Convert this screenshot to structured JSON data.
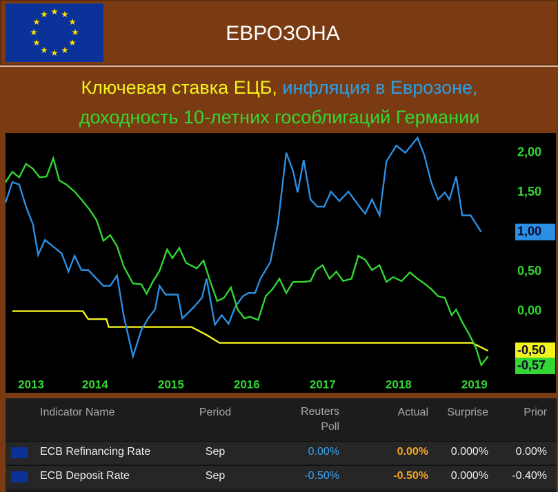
{
  "header": {
    "title": "ЕВРОЗОНА"
  },
  "chart_data": {
    "type": "line",
    "subtitle": [
      "Ключевая ставка ЕЦБ,",
      "инфляция в Еврозоне,",
      "доходность 10-летних гособлигаций Германии"
    ],
    "xlim": [
      2012.82,
      2019.52
    ],
    "ylim": [
      -1.03,
      2.25
    ],
    "xticks": [
      2013,
      2014,
      2015,
      2016,
      2017,
      2018,
      2019
    ],
    "yticks": [
      {
        "value": 0,
        "label": "0,00"
      },
      {
        "value": 0.5,
        "label": "0,50"
      },
      {
        "value": 1,
        "label": "1,00"
      },
      {
        "value": 1.5,
        "label": "1,50"
      },
      {
        "value": 2,
        "label": "2,00"
      }
    ],
    "grid": false,
    "series": [
      {
        "color": "#f2f21e",
        "last_label": "-0,50",
        "x": [
          2012.91,
          2013.84,
          2013.91,
          2014.15,
          2014.18,
          2015.27,
          2015.47,
          2015.64,
          2018.97,
          2019.18
        ],
        "values": [
          0,
          0,
          -0.1,
          -0.1,
          -0.2,
          -0.2,
          -0.3,
          -0.4,
          -0.4,
          -0.5
        ]
      },
      {
        "color": "#2b8fe3",
        "last_label": "1,00",
        "x": [
          2012.82,
          2012.91,
          2013.0,
          2013.09,
          2013.18,
          2013.25,
          2013.34,
          2013.47,
          2013.56,
          2013.65,
          2013.73,
          2013.82,
          2013.91,
          2014.02,
          2014.11,
          2014.2,
          2014.29,
          2014.38,
          2014.5,
          2014.61,
          2014.7,
          2014.79,
          2014.85,
          2014.93,
          2015.04,
          2015.09,
          2015.15,
          2015.29,
          2015.41,
          2015.47,
          2015.58,
          2015.67,
          2015.76,
          2015.85,
          2015.95,
          2016.02,
          2016.11,
          2016.18,
          2016.31,
          2016.41,
          2016.52,
          2016.61,
          2016.67,
          2016.75,
          2016.84,
          2016.93,
          2017.02,
          2017.11,
          2017.22,
          2017.34,
          2017.47,
          2017.56,
          2017.65,
          2017.75,
          2017.84,
          2017.97,
          2018.09,
          2018.25,
          2018.34,
          2018.43,
          2018.52,
          2018.61,
          2018.67,
          2018.76,
          2018.84,
          2018.95,
          2019.09
        ],
        "values": [
          1.37,
          1.63,
          1.6,
          1.32,
          1.1,
          0.71,
          0.9,
          0.8,
          0.73,
          0.5,
          0.7,
          0.52,
          0.52,
          0.41,
          0.32,
          0.32,
          0.45,
          -0.07,
          -0.57,
          -0.24,
          -0.09,
          0.02,
          0.32,
          0.21,
          0.21,
          0.21,
          -0.09,
          0.04,
          0.17,
          0.41,
          -0.17,
          -0.05,
          -0.16,
          0.06,
          0.19,
          0.23,
          0.23,
          0.41,
          0.62,
          1.1,
          2.0,
          1.77,
          1.5,
          1.91,
          1.41,
          1.32,
          1.32,
          1.51,
          1.39,
          1.51,
          1.34,
          1.23,
          1.41,
          1.21,
          1.89,
          2.09,
          2.0,
          2.19,
          1.97,
          1.63,
          1.41,
          1.5,
          1.41,
          1.7,
          1.21,
          1.21,
          1.0
        ]
      },
      {
        "color": "#33d633",
        "last_label": "-0,57",
        "x": [
          2012.82,
          2012.91,
          2013.0,
          2013.09,
          2013.18,
          2013.27,
          2013.36,
          2013.45,
          2013.53,
          2013.62,
          2013.73,
          2013.82,
          2013.93,
          2014.02,
          2014.11,
          2014.2,
          2014.29,
          2014.38,
          2014.5,
          2014.61,
          2014.68,
          2014.76,
          2014.85,
          2014.95,
          2015.02,
          2015.11,
          2015.2,
          2015.34,
          2015.43,
          2015.52,
          2015.61,
          2015.7,
          2015.79,
          2015.88,
          2015.97,
          2016.04,
          2016.15,
          2016.25,
          2016.34,
          2016.43,
          2016.52,
          2016.61,
          2016.75,
          2016.84,
          2016.91,
          2017.0,
          2017.09,
          2017.18,
          2017.27,
          2017.38,
          2017.47,
          2017.56,
          2017.65,
          2017.75,
          2017.84,
          2017.93,
          2018.04,
          2018.15,
          2018.25,
          2018.34,
          2018.43,
          2018.52,
          2018.61,
          2018.7,
          2018.76,
          2018.84,
          2018.93,
          2019.02,
          2019.09,
          2019.18
        ],
        "values": [
          1.63,
          1.76,
          1.69,
          1.86,
          1.8,
          1.69,
          1.7,
          1.93,
          1.65,
          1.6,
          1.51,
          1.41,
          1.28,
          1.15,
          0.89,
          0.96,
          0.82,
          0.56,
          0.35,
          0.34,
          0.22,
          0.37,
          0.51,
          0.78,
          0.67,
          0.8,
          0.61,
          0.54,
          0.64,
          0.37,
          0.13,
          0.17,
          0.3,
          0.02,
          -0.09,
          -0.07,
          -0.11,
          0.19,
          0.28,
          0.41,
          0.23,
          0.37,
          0.37,
          0.38,
          0.52,
          0.58,
          0.41,
          0.5,
          0.38,
          0.41,
          0.7,
          0.65,
          0.52,
          0.58,
          0.37,
          0.43,
          0.38,
          0.49,
          0.41,
          0.35,
          0.28,
          0.19,
          0.17,
          -0.05,
          0.02,
          -0.14,
          -0.29,
          -0.46,
          -0.68,
          -0.57
        ]
      }
    ]
  },
  "table": {
    "columns": [
      "Indicator Name",
      "Period",
      "Reuters Poll",
      "Actual",
      "Surprise",
      "Prior"
    ],
    "rows": [
      [
        "ECB Refinancing Rate",
        "Sep",
        "0.00%",
        "0.00%",
        "0.000%",
        "0.00%"
      ],
      [
        "ECB Deposit Rate",
        "Sep",
        "-0.50%",
        "-0.50%",
        "0.000%",
        "-0.40%"
      ]
    ]
  }
}
